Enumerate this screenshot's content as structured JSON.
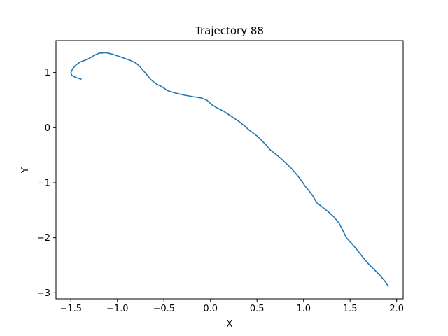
{
  "chart_data": {
    "type": "line",
    "title": "Trajectory 88",
    "xlabel": "X",
    "ylabel": "Y",
    "xlim": [
      -1.66,
      2.07
    ],
    "ylim": [
      -3.11,
      1.58
    ],
    "xticks": [
      -1.5,
      -1.0,
      -0.5,
      0.0,
      0.5,
      1.0,
      1.5,
      2.0
    ],
    "xtick_labels": [
      "−1.5",
      "−1.0",
      "−0.5",
      "0.0",
      "0.5",
      "1.0",
      "1.5",
      "2.0"
    ],
    "yticks": [
      -3,
      -2,
      -1,
      0,
      1
    ],
    "ytick_labels": [
      "−3",
      "−2",
      "−1",
      "0",
      "1"
    ],
    "grid": false,
    "line_color": "#1f77b4",
    "series": [
      {
        "points": [
          [
            -1.39,
            0.88
          ],
          [
            -1.45,
            0.91
          ],
          [
            -1.49,
            0.95
          ],
          [
            -1.5,
            1.0
          ],
          [
            -1.48,
            1.07
          ],
          [
            -1.45,
            1.13
          ],
          [
            -1.4,
            1.19
          ],
          [
            -1.32,
            1.24
          ],
          [
            -1.26,
            1.3
          ],
          [
            -1.2,
            1.35
          ],
          [
            -1.12,
            1.36
          ],
          [
            -1.05,
            1.33
          ],
          [
            -0.96,
            1.28
          ],
          [
            -0.86,
            1.22
          ],
          [
            -0.8,
            1.17
          ],
          [
            -0.76,
            1.11
          ],
          [
            -0.72,
            1.03
          ],
          [
            -0.68,
            0.95
          ],
          [
            -0.64,
            0.87
          ],
          [
            -0.58,
            0.79
          ],
          [
            -0.52,
            0.74
          ],
          [
            -0.46,
            0.67
          ],
          [
            -0.38,
            0.63
          ],
          [
            -0.28,
            0.59
          ],
          [
            -0.18,
            0.56
          ],
          [
            -0.1,
            0.54
          ],
          [
            -0.04,
            0.5
          ],
          [
            -0.02,
            0.47
          ],
          [
            0.02,
            0.41
          ],
          [
            0.08,
            0.35
          ],
          [
            0.14,
            0.3
          ],
          [
            0.22,
            0.21
          ],
          [
            0.3,
            0.12
          ],
          [
            0.36,
            0.04
          ],
          [
            0.42,
            -0.05
          ],
          [
            0.5,
            -0.15
          ],
          [
            0.56,
            -0.25
          ],
          [
            0.6,
            -0.32
          ],
          [
            0.64,
            -0.4
          ],
          [
            0.7,
            -0.48
          ],
          [
            0.75,
            -0.55
          ],
          [
            0.8,
            -0.63
          ],
          [
            0.86,
            -0.72
          ],
          [
            0.9,
            -0.8
          ],
          [
            0.94,
            -0.88
          ],
          [
            0.98,
            -0.97
          ],
          [
            1.02,
            -1.07
          ],
          [
            1.06,
            -1.15
          ],
          [
            1.1,
            -1.24
          ],
          [
            1.14,
            -1.36
          ],
          [
            1.2,
            -1.44
          ],
          [
            1.26,
            -1.52
          ],
          [
            1.32,
            -1.61
          ],
          [
            1.38,
            -1.73
          ],
          [
            1.42,
            -1.86
          ],
          [
            1.46,
            -2.0
          ],
          [
            1.52,
            -2.11
          ],
          [
            1.58,
            -2.23
          ],
          [
            1.64,
            -2.36
          ],
          [
            1.7,
            -2.48
          ],
          [
            1.76,
            -2.58
          ],
          [
            1.82,
            -2.68
          ],
          [
            1.87,
            -2.78
          ],
          [
            1.91,
            -2.88
          ]
        ]
      }
    ]
  }
}
